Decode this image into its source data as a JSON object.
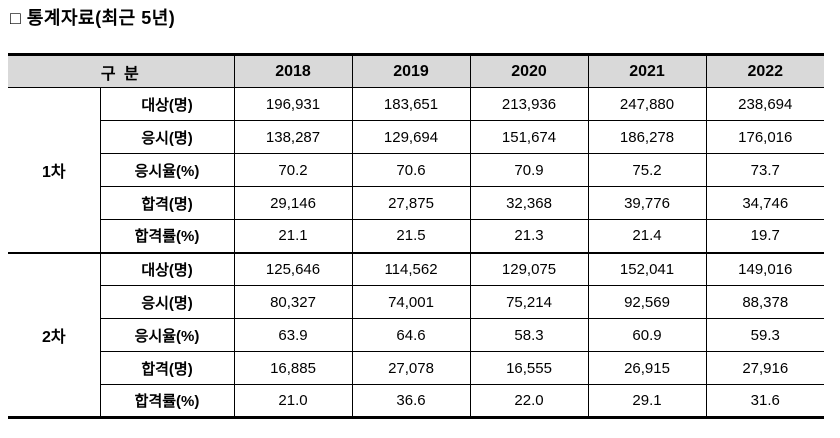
{
  "page": {
    "title": "□ 통계자료(최근 5년)"
  },
  "colors": {
    "header_bg": "#d9d9d9",
    "border": "#000000",
    "text": "#000000"
  },
  "table": {
    "corner_header": "구 분",
    "years": [
      "2018",
      "2019",
      "2020",
      "2021",
      "2022"
    ],
    "sections": [
      {
        "name": "1차",
        "rows": [
          {
            "label": "대상(명)",
            "values": [
              "196,931",
              "183,651",
              "213,936",
              "247,880",
              "238,694"
            ]
          },
          {
            "label": "응시(명)",
            "values": [
              "138,287",
              "129,694",
              "151,674",
              "186,278",
              "176,016"
            ]
          },
          {
            "label": "응시율(%)",
            "values": [
              "70.2",
              "70.6",
              "70.9",
              "75.2",
              "73.7"
            ]
          },
          {
            "label": "합격(명)",
            "values": [
              "29,146",
              "27,875",
              "32,368",
              "39,776",
              "34,746"
            ]
          },
          {
            "label": "합격률(%)",
            "values": [
              "21.1",
              "21.5",
              "21.3",
              "21.4",
              "19.7"
            ]
          }
        ]
      },
      {
        "name": "2차",
        "rows": [
          {
            "label": "대상(명)",
            "values": [
              "125,646",
              "114,562",
              "129,075",
              "152,041",
              "149,016"
            ]
          },
          {
            "label": "응시(명)",
            "values": [
              "80,327",
              "74,001",
              "75,214",
              "92,569",
              "88,378"
            ]
          },
          {
            "label": "응시율(%)",
            "values": [
              "63.9",
              "64.6",
              "58.3",
              "60.9",
              "59.3"
            ]
          },
          {
            "label": "합격(명)",
            "values": [
              "16,885",
              "27,078",
              "16,555",
              "26,915",
              "27,916"
            ]
          },
          {
            "label": "합격률(%)",
            "values": [
              "21.0",
              "36.6",
              "22.0",
              "29.1",
              "31.6"
            ]
          }
        ]
      }
    ]
  }
}
